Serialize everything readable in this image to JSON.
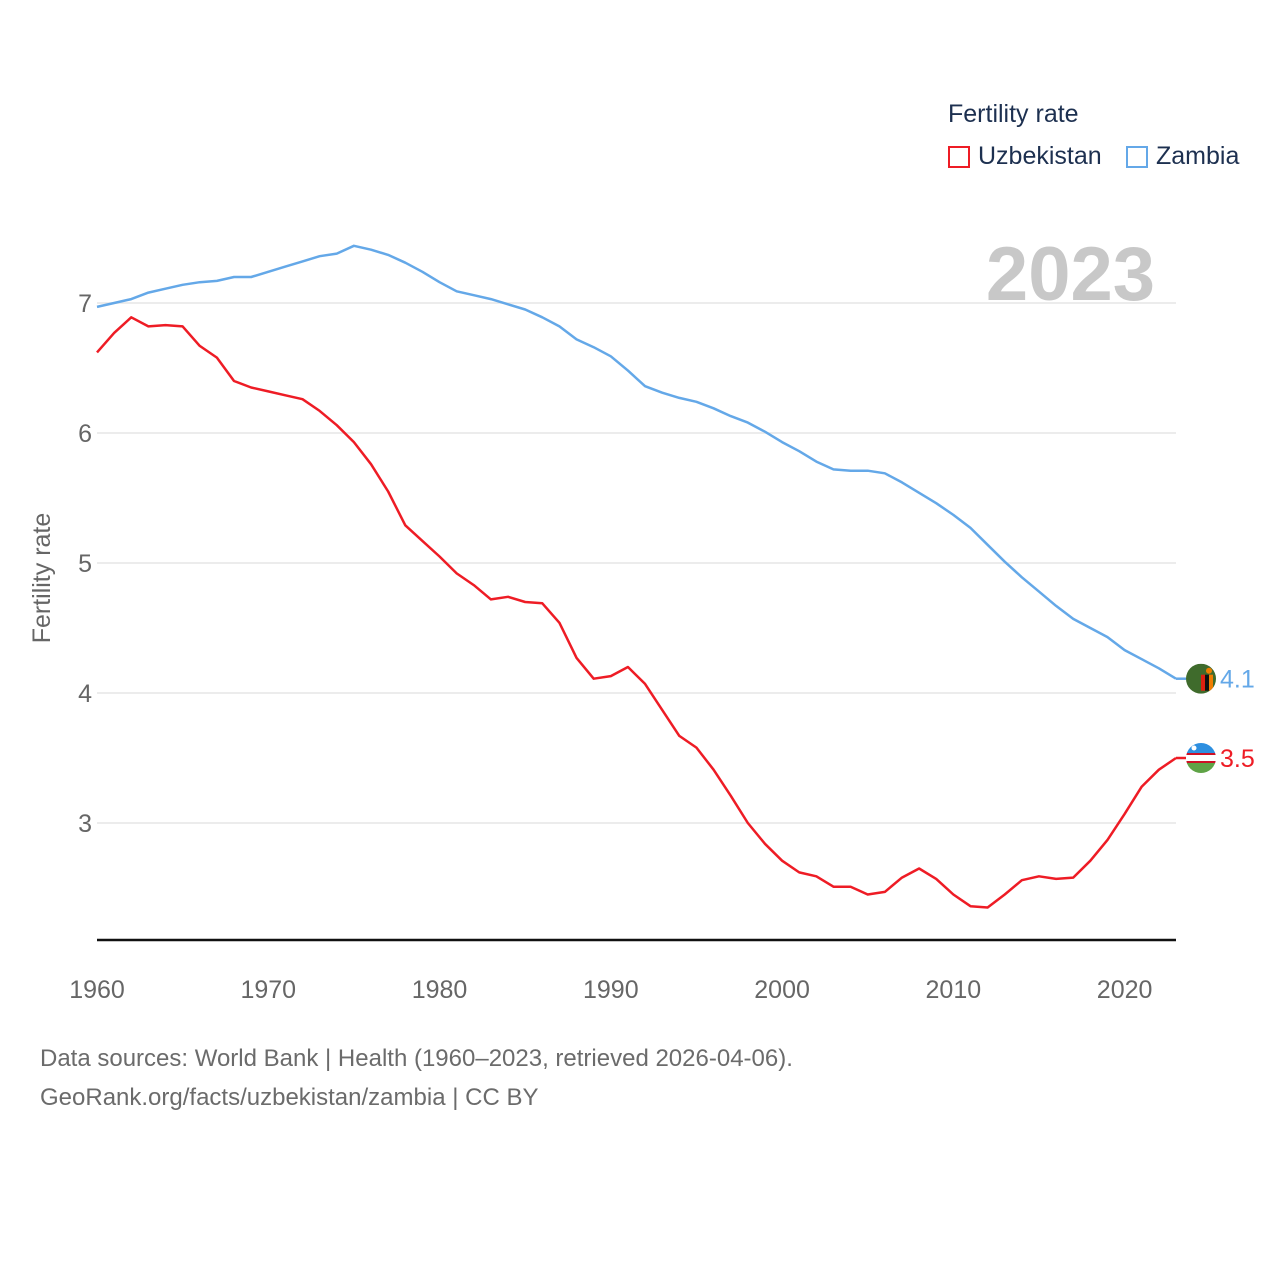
{
  "legend": {
    "title": "Fertility rate",
    "items": [
      {
        "label": "Uzbekistan",
        "color": "#ee1c25"
      },
      {
        "label": "Zambia",
        "color": "#64a8e8"
      }
    ]
  },
  "footer": {
    "sources": "Data sources: World Bank | Health (1960–2023, retrieved 2026-04-06).",
    "link": "GeoRank.org/facts/uzbekistan/zambia | CC BY"
  },
  "chart_data": {
    "type": "line",
    "year_label": "2023",
    "ylabel": "Fertility rate",
    "xlabel": "",
    "xlim": [
      1960,
      2023
    ],
    "ylim": [
      2.1,
      7.7
    ],
    "yticks": [
      3,
      4,
      5,
      6,
      7
    ],
    "xticks": [
      1960,
      1970,
      1980,
      1990,
      2000,
      2010,
      2020
    ],
    "x": [
      1960,
      1961,
      1962,
      1963,
      1964,
      1965,
      1966,
      1967,
      1968,
      1969,
      1970,
      1971,
      1972,
      1973,
      1974,
      1975,
      1976,
      1977,
      1978,
      1979,
      1980,
      1981,
      1982,
      1983,
      1984,
      1985,
      1986,
      1987,
      1988,
      1989,
      1990,
      1991,
      1992,
      1993,
      1994,
      1995,
      1996,
      1997,
      1998,
      1999,
      2000,
      2001,
      2002,
      2003,
      2004,
      2005,
      2006,
      2007,
      2008,
      2009,
      2010,
      2011,
      2012,
      2013,
      2014,
      2015,
      2016,
      2017,
      2018,
      2019,
      2020,
      2021,
      2022,
      2023
    ],
    "series": [
      {
        "name": "Uzbekistan",
        "color": "#ee1c25",
        "end_label": "3.5",
        "values": [
          6.62,
          6.77,
          6.89,
          6.82,
          6.83,
          6.82,
          6.67,
          6.58,
          6.4,
          6.35,
          6.32,
          6.29,
          6.26,
          6.17,
          6.06,
          5.93,
          5.76,
          5.55,
          5.29,
          5.17,
          5.05,
          4.92,
          4.83,
          4.72,
          4.74,
          4.7,
          4.69,
          4.54,
          4.27,
          4.11,
          4.13,
          4.2,
          4.07,
          3.87,
          3.67,
          3.58,
          3.41,
          3.21,
          3.0,
          2.84,
          2.71,
          2.62,
          2.59,
          2.51,
          2.51,
          2.45,
          2.47,
          2.58,
          2.65,
          2.57,
          2.45,
          2.36,
          2.35,
          2.45,
          2.56,
          2.59,
          2.57,
          2.58,
          2.71,
          2.87,
          3.07,
          3.28,
          3.41,
          3.5
        ]
      },
      {
        "name": "Zambia",
        "color": "#64a8e8",
        "end_label": "4.1",
        "values": [
          6.97,
          7.0,
          7.03,
          7.08,
          7.11,
          7.14,
          7.16,
          7.17,
          7.2,
          7.2,
          7.24,
          7.28,
          7.32,
          7.36,
          7.38,
          7.44,
          7.41,
          7.37,
          7.31,
          7.24,
          7.16,
          7.09,
          7.06,
          7.03,
          6.99,
          6.95,
          6.89,
          6.82,
          6.72,
          6.66,
          6.59,
          6.48,
          6.36,
          6.31,
          6.27,
          6.24,
          6.19,
          6.13,
          6.08,
          6.01,
          5.93,
          5.86,
          5.78,
          5.72,
          5.71,
          5.71,
          5.69,
          5.62,
          5.54,
          5.46,
          5.37,
          5.27,
          5.14,
          5.01,
          4.89,
          4.78,
          4.67,
          4.57,
          4.5,
          4.43,
          4.33,
          4.26,
          4.19,
          4.11
        ]
      }
    ]
  }
}
